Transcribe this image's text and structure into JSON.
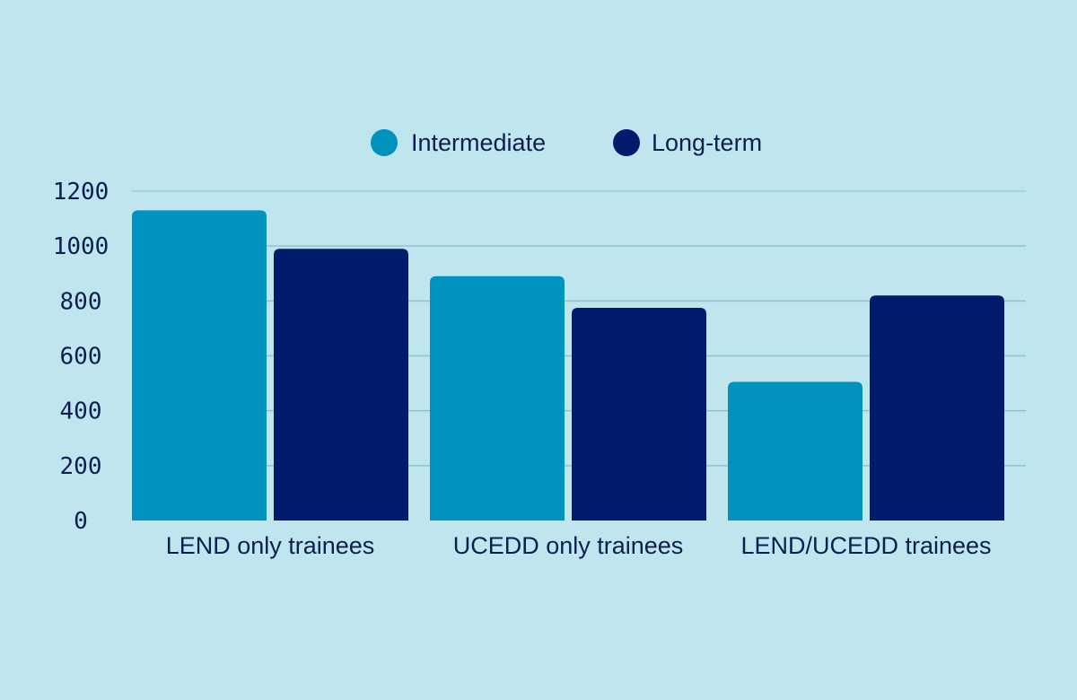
{
  "chart_data": {
    "type": "bar",
    "title": "",
    "xlabel": "",
    "ylabel": "",
    "ylim": [
      0,
      1200
    ],
    "yticks": [
      0,
      200,
      400,
      600,
      800,
      1000,
      1200
    ],
    "grid": true,
    "legend_position": "top-center",
    "categories": [
      "LEND only trainees",
      "UCEDD only trainees",
      "LEND/UCEDD trainees"
    ],
    "series": [
      {
        "name": "Intermediate",
        "color": "#0093bd",
        "values": [
          1130,
          890,
          505
        ]
      },
      {
        "name": "Long-term",
        "color": "#011b6d",
        "values": [
          990,
          775,
          820
        ]
      }
    ]
  },
  "colors": {
    "background": "#bfe5ef",
    "gridline": "#8fc3d2",
    "text": "#0d1f4f"
  }
}
